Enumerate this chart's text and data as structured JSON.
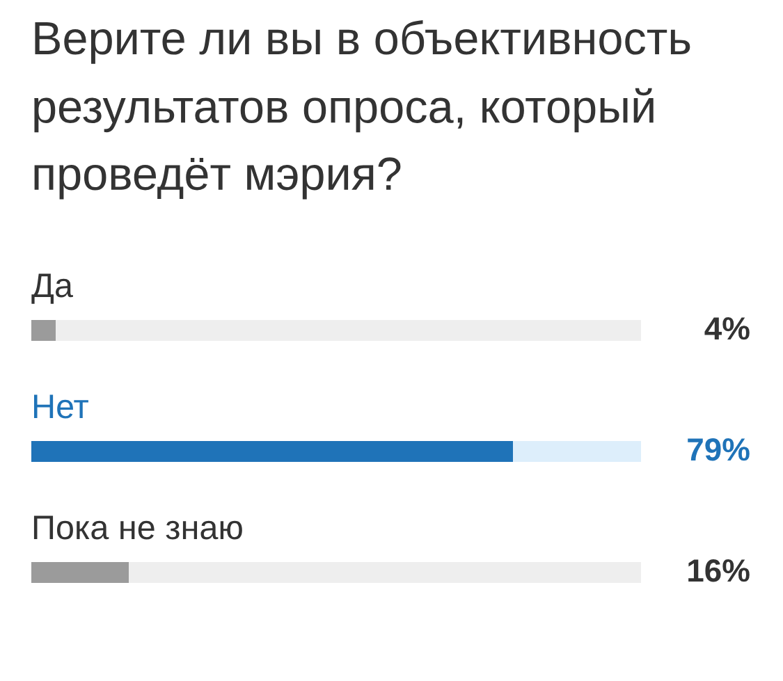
{
  "chart_data": {
    "type": "bar",
    "title": "Верите ли вы в объективность результатов опроса, который проведёт мэрия?",
    "orientation": "horizontal",
    "stacked": true,
    "categories": [
      "Да",
      "Нет",
      "Пока не знаю"
    ],
    "series": [
      {
        "colors": [
          "#9b9b9b",
          "#1f73b8",
          "#9b9b9b"
        ],
        "values": [
          4,
          79,
          16
        ],
        "value_labels": [
          "4%",
          "79%",
          "16%"
        ]
      },
      {
        "colors": [
          "#eeeeee",
          "#ddeefb",
          "#eeeeee"
        ],
        "values": [
          96,
          21,
          84
        ]
      }
    ],
    "tick_labels": false
  }
}
